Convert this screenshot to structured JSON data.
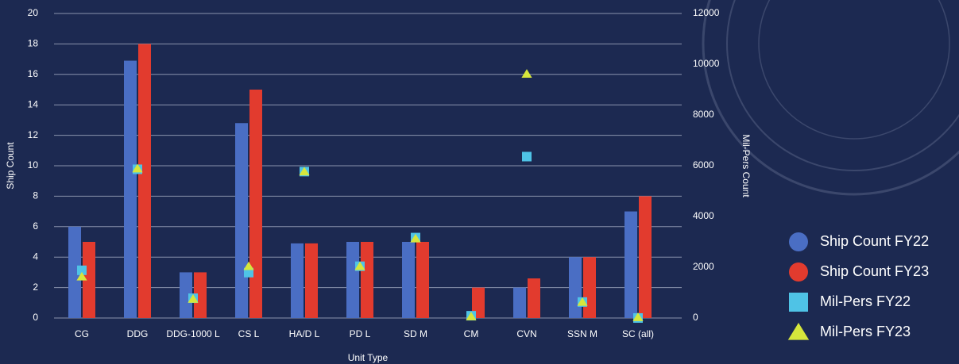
{
  "chart_data": {
    "type": "bar",
    "x_label": "Unit Type",
    "y_label": "Ship Count",
    "y2_label": "Mil-Pers Count",
    "categories": [
      "CG",
      "DDG",
      "DDG-1000 L",
      "CS L",
      "HA/D L",
      "PD L",
      "SD M",
      "CM",
      "CVN",
      "SSN M",
      "SC (all)"
    ],
    "series": [
      {
        "name": "Ship Count FY22",
        "type": "bar",
        "color": "#4a6ec4",
        "values": [
          6,
          16.9,
          3,
          12.8,
          4.9,
          5,
          5,
          null,
          2,
          4,
          7
        ]
      },
      {
        "name": "Ship Count FY23",
        "type": "bar",
        "color": "#e23b2e",
        "values": [
          5,
          18,
          3,
          15,
          4.9,
          5,
          5,
          2,
          2.6,
          4,
          8
        ]
      },
      {
        "name": "Mil-Pers  FY22",
        "type": "scatter",
        "marker": "square",
        "axis": "y2",
        "color": "#4fc3e6",
        "values": [
          1880,
          5860,
          780,
          1790,
          5770,
          2040,
          3170,
          90,
          6360,
          630,
          0
        ]
      },
      {
        "name": "Mil-Pers FY23",
        "type": "scatter",
        "marker": "triangle",
        "axis": "y2",
        "color": "#d6e63c",
        "values": [
          1630,
          5890,
          750,
          2040,
          5770,
          2040,
          3130,
          60,
          9620,
          630,
          30
        ]
      }
    ],
    "ylim": [
      0,
      20
    ],
    "yticks": [
      0,
      2,
      4,
      6,
      8,
      10,
      12,
      14,
      16,
      18,
      20
    ],
    "y2lim": [
      0,
      12000
    ],
    "y2ticks": [
      0,
      2000,
      4000,
      6000,
      8000,
      10000,
      12000
    ],
    "grid": true,
    "legend": "lower right"
  }
}
